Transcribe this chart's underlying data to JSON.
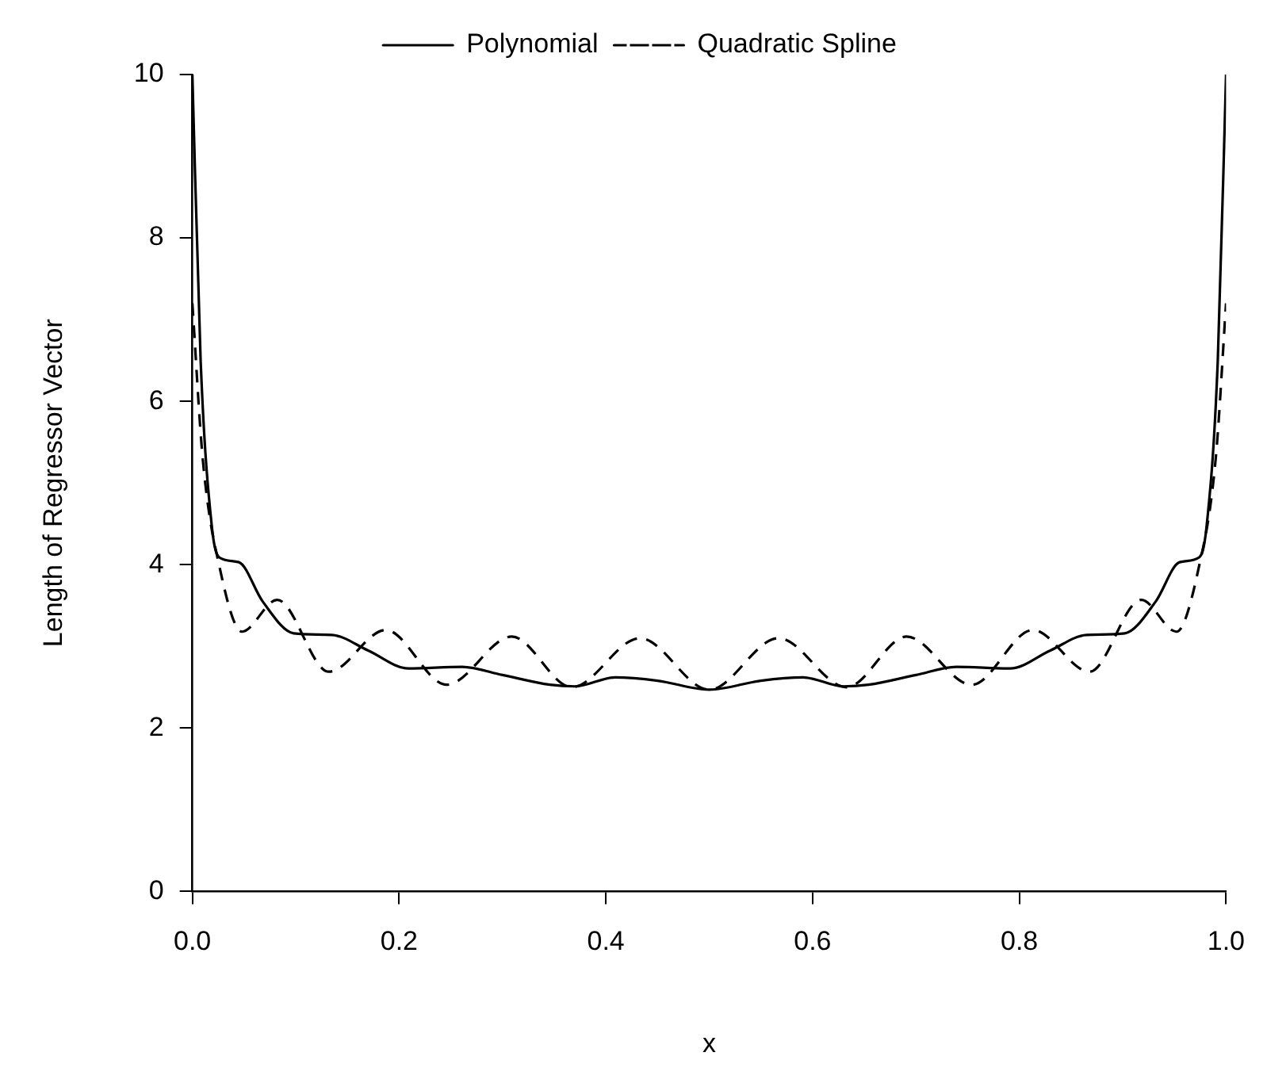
{
  "chart_data": {
    "type": "line",
    "xlabel": "x",
    "ylabel": "Length of Regressor Vector",
    "xlim": [
      0,
      1
    ],
    "ylim": [
      0,
      10
    ],
    "xticks": [
      {
        "value": 0,
        "label": "0.0"
      },
      0.2,
      0.4,
      0.6,
      0.8,
      {
        "value": 1,
        "label": "1.0"
      }
    ],
    "yticks": [
      0,
      2,
      4,
      6,
      8,
      10
    ],
    "grid": false,
    "legend": "top",
    "marker": "none",
    "series": [
      {
        "name": "Polynomial",
        "color": "#000000",
        "line_style": "solid",
        "x": [
          0,
          0.008,
          0.019,
          0.026,
          0.045,
          0.068,
          0.098,
          0.135,
          0.17,
          0.209,
          0.261,
          0.3,
          0.346,
          0.37,
          0.409,
          0.45,
          0.5,
          0.55,
          0.591,
          0.63,
          0.654,
          0.7,
          0.739,
          0.791,
          0.83,
          0.865,
          0.902,
          0.932,
          0.955,
          0.974,
          0.981,
          0.992,
          1
        ],
        "values": [
          10,
          6.5,
          4.45,
          4.09,
          4.03,
          3.55,
          3.16,
          3.14,
          2.95,
          2.73,
          2.75,
          2.65,
          2.53,
          2.51,
          2.62,
          2.58,
          2.47,
          2.58,
          2.62,
          2.51,
          2.53,
          2.65,
          2.75,
          2.73,
          2.95,
          3.14,
          3.16,
          3.55,
          4.03,
          4.09,
          4.45,
          6.5,
          10
        ]
      },
      {
        "name": "Quadratic Spline",
        "color": "#000000",
        "line_style": "dashed",
        "x": [
          0,
          0.01,
          0.027,
          0.048,
          0.082,
          0.132,
          0.187,
          0.246,
          0.309,
          0.367,
          0.433,
          0.5,
          0.567,
          0.633,
          0.691,
          0.754,
          0.813,
          0.868,
          0.918,
          0.952,
          0.973,
          0.99,
          1
        ],
        "values": [
          7.2,
          5.3,
          3.93,
          3.18,
          3.57,
          2.69,
          3.2,
          2.53,
          3.12,
          2.5,
          3.1,
          2.47,
          3.1,
          2.5,
          3.12,
          2.53,
          3.2,
          2.69,
          3.57,
          3.18,
          3.93,
          5.3,
          7.2
        ]
      }
    ]
  }
}
